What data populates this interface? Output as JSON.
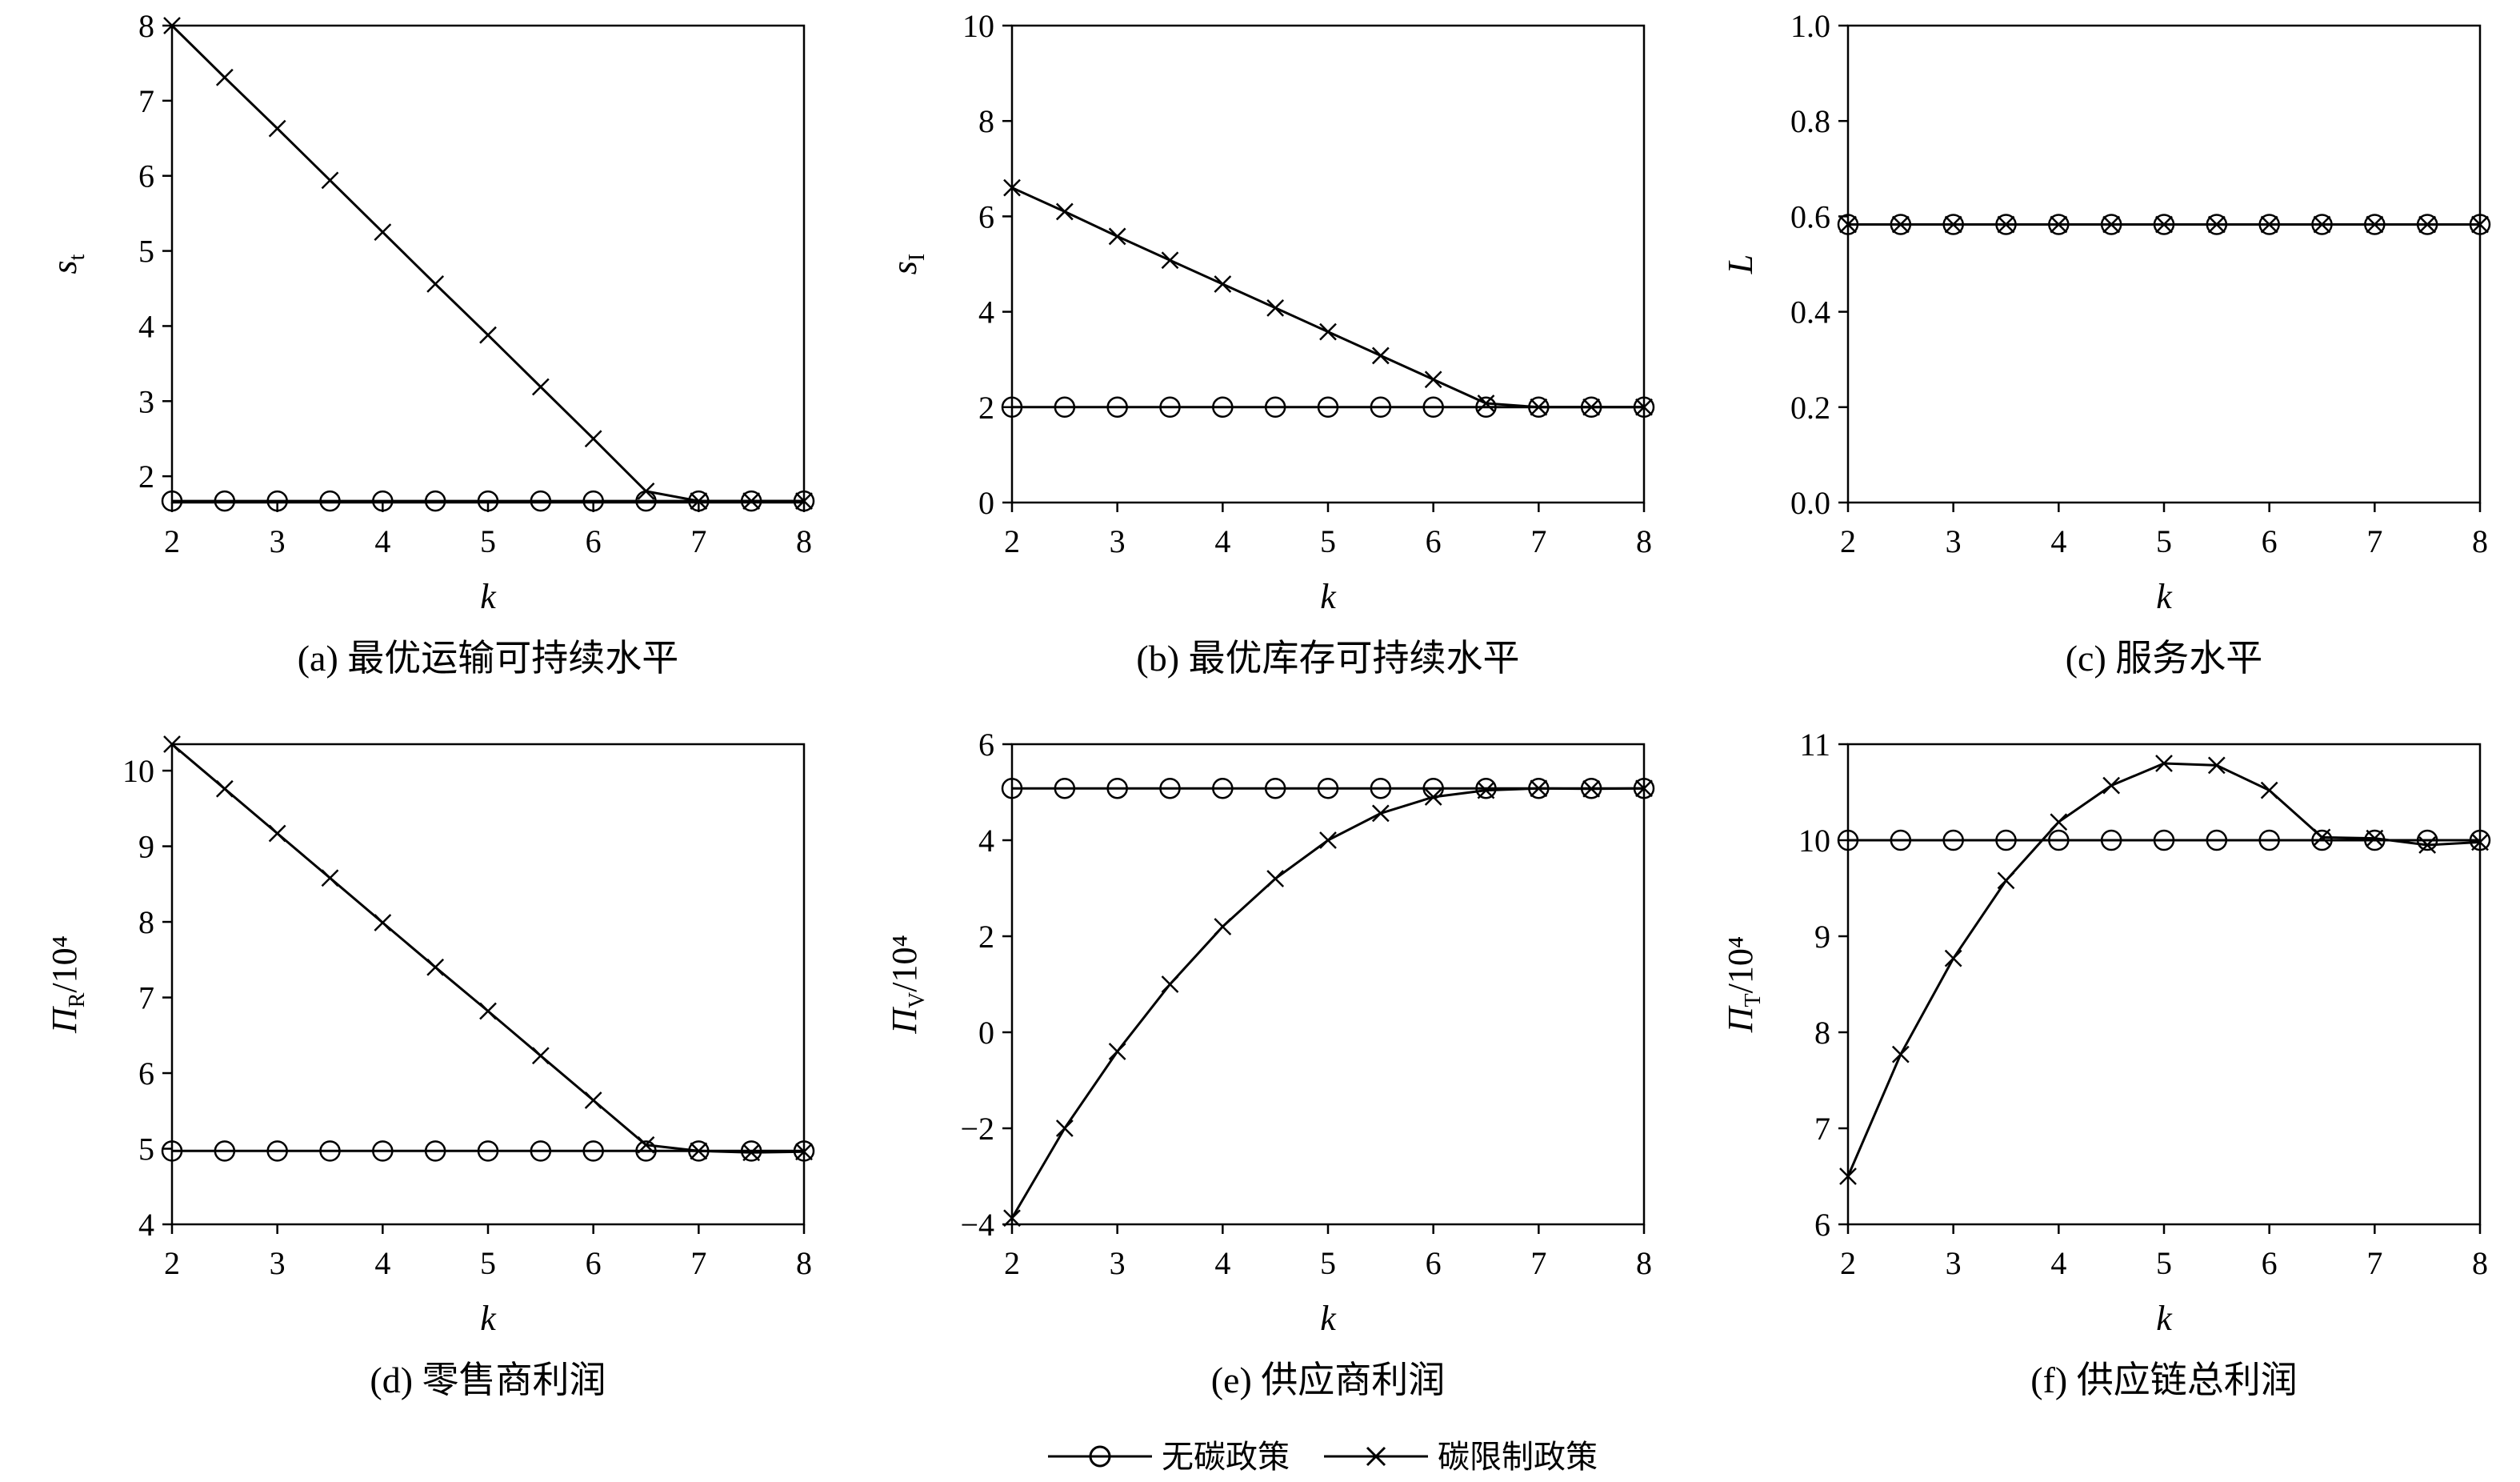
{
  "chart_data": [
    {
      "type": "line",
      "caption": "(a) 最优运输可持续水平",
      "xlabel": "k",
      "ylabel": {
        "main": "s",
        "sub": "t",
        "suffix": ""
      },
      "xlim": [
        2,
        8
      ],
      "ylim": [
        1.65,
        8
      ],
      "xticks": [
        "2",
        "3",
        "4",
        "5",
        "6",
        "7",
        "8"
      ],
      "yticks": [
        "2",
        "3",
        "4",
        "5",
        "6",
        "7",
        "8"
      ],
      "x": [
        2,
        2.5,
        3,
        3.5,
        4,
        4.5,
        5,
        5.5,
        6,
        6.5,
        7,
        7.5,
        8
      ],
      "series": [
        {
          "name": "无碳政策",
          "marker": "circle",
          "values": [
            1.67,
            1.67,
            1.67,
            1.67,
            1.67,
            1.67,
            1.67,
            1.67,
            1.67,
            1.67,
            1.67,
            1.67,
            1.67
          ]
        },
        {
          "name": "碳限制政策",
          "marker": "x",
          "values": [
            8.0,
            7.31,
            6.63,
            5.94,
            5.25,
            4.56,
            3.88,
            3.19,
            2.5,
            1.8,
            1.67,
            1.67,
            1.67
          ]
        }
      ]
    },
    {
      "type": "line",
      "caption": "(b) 最优库存可持续水平",
      "xlabel": "k",
      "ylabel": {
        "main": "s",
        "sub": "I",
        "suffix": ""
      },
      "xlim": [
        2,
        8
      ],
      "ylim": [
        0,
        10
      ],
      "xticks": [
        "2",
        "3",
        "4",
        "5",
        "6",
        "7",
        "8"
      ],
      "yticks": [
        "0",
        "2",
        "4",
        "6",
        "8",
        "10"
      ],
      "x": [
        2,
        2.5,
        3,
        3.5,
        4,
        4.5,
        5,
        5.5,
        6,
        6.5,
        7,
        7.5,
        8
      ],
      "series": [
        {
          "name": "无碳政策",
          "marker": "circle",
          "values": [
            2,
            2,
            2,
            2,
            2,
            2,
            2,
            2,
            2,
            2,
            2,
            2,
            2
          ]
        },
        {
          "name": "碳限制政策",
          "marker": "x",
          "values": [
            6.6,
            6.1,
            5.58,
            5.08,
            4.58,
            4.08,
            3.58,
            3.08,
            2.58,
            2.08,
            2,
            2,
            2
          ]
        }
      ]
    },
    {
      "type": "line",
      "caption": "(c) 服务水平",
      "xlabel": "k",
      "ylabel": {
        "main": "L",
        "sub": "",
        "suffix": ""
      },
      "xlim": [
        2,
        8
      ],
      "ylim": [
        0,
        1
      ],
      "xticks": [
        "2",
        "3",
        "4",
        "5",
        "6",
        "7",
        "8"
      ],
      "yticks": [
        "0.0",
        "0.2",
        "0.4",
        "0.6",
        "0.8",
        "1.0"
      ],
      "x": [
        2,
        2.5,
        3,
        3.5,
        4,
        4.5,
        5,
        5.5,
        6,
        6.5,
        7,
        7.5,
        8
      ],
      "series": [
        {
          "name": "无碳政策",
          "marker": "circle",
          "values": [
            0.583,
            0.583,
            0.583,
            0.583,
            0.583,
            0.583,
            0.583,
            0.583,
            0.583,
            0.583,
            0.583,
            0.583,
            0.583
          ]
        },
        {
          "name": "碳限制政策",
          "marker": "x",
          "values": [
            0.583,
            0.583,
            0.583,
            0.583,
            0.583,
            0.583,
            0.583,
            0.583,
            0.583,
            0.583,
            0.583,
            0.583,
            0.583
          ]
        }
      ]
    },
    {
      "type": "line",
      "caption": "(d) 零售商利润",
      "xlabel": "k",
      "ylabel": {
        "main": "Π",
        "sub": "R",
        "suffix": "/10⁴"
      },
      "xlim": [
        2,
        8
      ],
      "ylim": [
        4,
        10.35
      ],
      "xticks": [
        "2",
        "3",
        "4",
        "5",
        "6",
        "7",
        "8"
      ],
      "yticks": [
        "4",
        "5",
        "6",
        "7",
        "8",
        "9",
        "10"
      ],
      "x": [
        2,
        2.5,
        3,
        3.5,
        4,
        4.5,
        5,
        5.5,
        6,
        6.5,
        7,
        7.5,
        8
      ],
      "series": [
        {
          "name": "无碳政策",
          "marker": "circle",
          "values": [
            4.97,
            4.97,
            4.97,
            4.97,
            4.97,
            4.97,
            4.97,
            4.97,
            4.97,
            4.97,
            4.97,
            4.97,
            4.97
          ]
        },
        {
          "name": "碳限制政策",
          "marker": "x",
          "values": [
            10.35,
            9.76,
            9.17,
            8.58,
            7.99,
            7.4,
            6.82,
            6.23,
            5.64,
            5.05,
            4.97,
            4.95,
            4.96
          ]
        }
      ]
    },
    {
      "type": "line",
      "caption": "(e) 供应商利润",
      "xlabel": "k",
      "ylabel": {
        "main": "Π",
        "sub": "V",
        "suffix": "/10⁴"
      },
      "xlim": [
        2,
        8
      ],
      "ylim": [
        -4,
        6
      ],
      "xticks": [
        "2",
        "3",
        "4",
        "5",
        "6",
        "7",
        "8"
      ],
      "yticks": [
        "−4",
        "−2",
        "0",
        "2",
        "4",
        "6"
      ],
      "x": [
        2,
        2.5,
        3,
        3.5,
        4,
        4.5,
        5,
        5.5,
        6,
        6.5,
        7,
        7.5,
        8
      ],
      "series": [
        {
          "name": "无碳政策",
          "marker": "circle",
          "values": [
            5.08,
            5.08,
            5.08,
            5.08,
            5.08,
            5.08,
            5.08,
            5.08,
            5.08,
            5.08,
            5.08,
            5.08,
            5.08
          ]
        },
        {
          "name": "碳限制政策",
          "marker": "x",
          "values": [
            -3.87,
            -2.0,
            -0.4,
            1.0,
            2.2,
            3.2,
            4.0,
            4.56,
            4.9,
            5.04,
            5.08,
            5.07,
            5.08
          ]
        }
      ]
    },
    {
      "type": "line",
      "caption": "(f) 供应链总利润",
      "xlabel": "k",
      "ylabel": {
        "main": "Π",
        "sub": "T",
        "suffix": "/10⁴"
      },
      "xlim": [
        2,
        8
      ],
      "ylim": [
        6,
        11
      ],
      "xticks": [
        "2",
        "3",
        "4",
        "5",
        "6",
        "7",
        "8"
      ],
      "yticks": [
        "6",
        "7",
        "8",
        "9",
        "10",
        "11"
      ],
      "x": [
        2,
        2.5,
        3,
        3.5,
        4,
        4.5,
        5,
        5.5,
        6,
        6.5,
        7,
        7.5,
        8
      ],
      "series": [
        {
          "name": "无碳政策",
          "marker": "circle",
          "values": [
            10.0,
            10.0,
            10.0,
            10.0,
            10.0,
            10.0,
            10.0,
            10.0,
            10.0,
            10.0,
            10.0,
            10.0,
            10.0
          ]
        },
        {
          "name": "碳限制政策",
          "marker": "x",
          "values": [
            6.5,
            7.77,
            8.77,
            9.58,
            10.19,
            10.57,
            10.8,
            10.78,
            10.52,
            10.03,
            10.02,
            9.95,
            9.98
          ]
        }
      ]
    }
  ],
  "legend": [
    {
      "label": "无碳政策",
      "marker": "circle"
    },
    {
      "label": "碳限制政策",
      "marker": "x"
    }
  ],
  "colors": {
    "line": "#000000",
    "background": "#ffffff"
  }
}
